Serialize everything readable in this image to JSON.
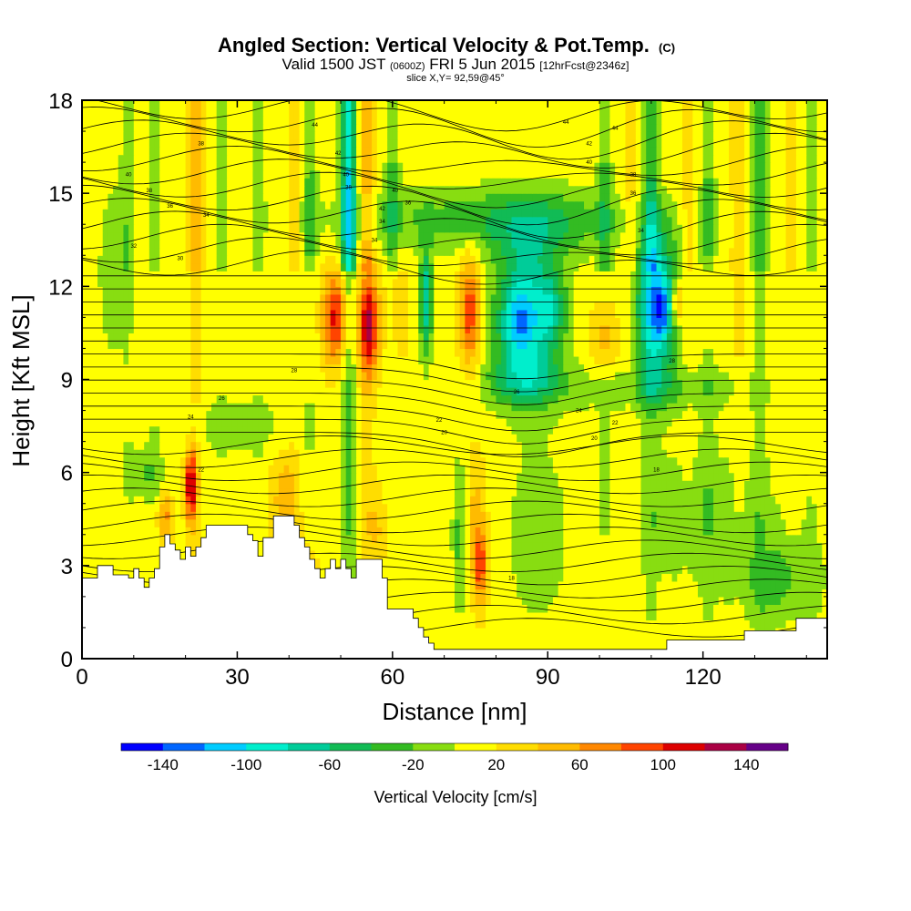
{
  "chart_data": {
    "type": "heatmap",
    "title": "Angled Section: Vertical Velocity & Pot.Temp.",
    "title_unit": "(C)",
    "subtitle_parts": [
      "Valid 1500 JST",
      "(0600Z)",
      "FRI 5 Jun 2015",
      "[12hrFcst@2346z]"
    ],
    "slice_label": "slice X,Y= 92,59@45°",
    "xlabel": "Distance [nm]",
    "ylabel": "Height [Kft MSL]",
    "x_ticks": [
      0,
      30,
      60,
      90,
      120
    ],
    "y_ticks": [
      0,
      3,
      6,
      9,
      12,
      15,
      18
    ],
    "xlim": [
      0,
      144
    ],
    "ylim": [
      0,
      18
    ],
    "colorbar": {
      "label": "Vertical Velocity [cm/s]",
      "tick_values": [
        -140,
        -100,
        -60,
        -20,
        20,
        60,
        100,
        140
      ],
      "tick_labels": [
        "-140",
        "-100",
        "-60",
        "-20",
        "20",
        "60",
        "100",
        "140"
      ],
      "range": [
        -160,
        160
      ],
      "bins": [
        {
          "from": -160,
          "to": -140,
          "color": "#0000ff"
        },
        {
          "from": -140,
          "to": -120,
          "color": "#0066ff"
        },
        {
          "from": -120,
          "to": -100,
          "color": "#00ccff"
        },
        {
          "from": -100,
          "to": -80,
          "color": "#00eecc"
        },
        {
          "from": -80,
          "to": -60,
          "color": "#00cc99"
        },
        {
          "from": -60,
          "to": -40,
          "color": "#11bb55"
        },
        {
          "from": -40,
          "to": -20,
          "color": "#33bb22"
        },
        {
          "from": -20,
          "to": 0,
          "color": "#88dd11"
        },
        {
          "from": 0,
          "to": 20,
          "color": "#ffff00"
        },
        {
          "from": 20,
          "to": 40,
          "color": "#ffdd00"
        },
        {
          "from": 40,
          "to": 60,
          "color": "#ffbb00"
        },
        {
          "from": 60,
          "to": 80,
          "color": "#ff8800"
        },
        {
          "from": 80,
          "to": 100,
          "color": "#ff4400"
        },
        {
          "from": 100,
          "to": 120,
          "color": "#dd0000"
        },
        {
          "from": 120,
          "to": 140,
          "color": "#aa0044"
        },
        {
          "from": 140,
          "to": 160,
          "color": "#660088"
        }
      ]
    },
    "vv_field": {
      "background": 12,
      "features": [
        {
          "x": 86,
          "y": 11.0,
          "sx": 6,
          "sy": 2.3,
          "a": -110
        },
        {
          "x": 84,
          "y": 10.8,
          "sx": 2.5,
          "sy": 1.0,
          "a": -40
        },
        {
          "x": 91,
          "y": 11.3,
          "sx": 2.5,
          "sy": 1.0,
          "a": -40
        },
        {
          "x": 111,
          "y": 11.4,
          "sx": 4,
          "sy": 2.4,
          "a": -120
        },
        {
          "x": 112,
          "y": 11.3,
          "sx": 1.3,
          "sy": 0.8,
          "a": -50
        },
        {
          "x": 66.5,
          "y": 11.5,
          "sx": 1.2,
          "sy": 1.8,
          "a": -90
        },
        {
          "x": 78,
          "y": 14.2,
          "sx": 30,
          "sy": 1.0,
          "a": -40
        },
        {
          "x": 88,
          "y": 13.8,
          "sx": 10,
          "sy": 1.2,
          "a": -30
        },
        {
          "x": 110,
          "y": 8.7,
          "sx": 20,
          "sy": 0.7,
          "a": -30
        },
        {
          "x": 85,
          "y": 9.0,
          "sx": 8,
          "sy": 0.8,
          "a": -40
        },
        {
          "x": 49,
          "y": 11.0,
          "sx": 2.5,
          "sy": 1.5,
          "a": 95
        },
        {
          "x": 55.5,
          "y": 10.7,
          "sx": 2,
          "sy": 1.6,
          "a": 105
        },
        {
          "x": 75,
          "y": 11.2,
          "sx": 2,
          "sy": 1.8,
          "a": 85
        },
        {
          "x": 101,
          "y": 10.3,
          "sx": 2.5,
          "sy": 1.4,
          "a": 45
        },
        {
          "x": 115,
          "y": 11.5,
          "sx": 0.8,
          "sy": 0.7,
          "a": 80
        },
        {
          "x": 61,
          "y": 11.3,
          "sx": 2,
          "sy": 1.8,
          "a": 30
        },
        {
          "x": 21,
          "y": 5.6,
          "sx": 1.1,
          "sy": 1.2,
          "a": 110
        },
        {
          "x": 16,
          "y": 4.6,
          "sx": 1.5,
          "sy": 0.8,
          "a": 55
        },
        {
          "x": 39,
          "y": 5.2,
          "sx": 2.5,
          "sy": 1.5,
          "a": 40
        },
        {
          "x": 77,
          "y": 3.0,
          "sx": 1.4,
          "sy": 1.3,
          "a": 80
        },
        {
          "x": 76,
          "y": 5.0,
          "sx": 2,
          "sy": 1.8,
          "a": 30
        },
        {
          "x": 57,
          "y": 4.2,
          "sx": 2,
          "sy": 1.3,
          "a": 30
        },
        {
          "x": 73,
          "y": 4.0,
          "sx": 1.4,
          "sy": 2.5,
          "a": -40
        },
        {
          "x": 88,
          "y": 4.0,
          "sx": 6,
          "sy": 3,
          "a": -25
        },
        {
          "x": 120,
          "y": 4.5,
          "sx": 15,
          "sy": 2.5,
          "a": -25
        },
        {
          "x": 135,
          "y": 2.5,
          "sx": 8,
          "sy": 1.5,
          "a": -35
        },
        {
          "x": 12,
          "y": 6.0,
          "sx": 4,
          "sy": 0.8,
          "a": -30
        },
        {
          "x": 30,
          "y": 7.5,
          "sx": 10,
          "sy": 0.8,
          "a": -25
        },
        {
          "x": 6,
          "y": 12.5,
          "sx": 3,
          "sy": 3,
          "a": -25
        },
        {
          "x": 42,
          "y": 2.8,
          "sx": 4,
          "sy": 1.5,
          "a": 25
        }
      ],
      "columns": [
        {
          "x": 9,
          "a": -25
        },
        {
          "x": 14,
          "a": -30
        },
        {
          "x": 22,
          "a": 40
        },
        {
          "x": 27,
          "a": -25
        },
        {
          "x": 34,
          "a": -25
        },
        {
          "x": 41,
          "a": 22
        },
        {
          "x": 44,
          "a": -35
        },
        {
          "x": 51.5,
          "a": -110
        },
        {
          "x": 55,
          "a": 45
        },
        {
          "x": 60,
          "a": -35
        },
        {
          "x": 101,
          "a": -35
        },
        {
          "x": 106,
          "a": 25
        },
        {
          "x": 110,
          "a": -50
        },
        {
          "x": 117,
          "a": 22
        },
        {
          "x": 121,
          "a": -35
        },
        {
          "x": 127,
          "a": 30
        },
        {
          "x": 131,
          "a": -45
        },
        {
          "x": 137,
          "a": 25
        },
        {
          "x": 141,
          "a": -25
        }
      ]
    },
    "terrain": {
      "x": [
        0,
        3,
        3,
        6,
        6,
        9,
        9,
        10,
        10,
        11,
        11,
        12,
        12,
        13,
        13,
        14,
        14,
        15,
        15,
        16,
        16,
        17,
        17,
        18,
        18,
        19,
        19,
        20,
        20,
        21,
        21,
        22,
        22,
        23,
        23,
        24,
        24,
        25,
        25,
        32,
        32,
        33,
        33,
        34,
        34,
        35,
        35,
        37,
        37,
        41,
        41,
        42,
        42,
        43,
        43,
        44,
        44,
        45,
        45,
        46,
        46,
        47,
        47,
        48,
        48,
        49,
        49,
        50,
        50,
        51,
        51,
        52,
        52,
        53,
        53,
        58,
        58,
        59,
        59,
        60,
        60,
        64,
        64,
        65,
        65,
        66,
        66,
        67,
        67,
        68,
        68,
        70,
        70,
        113,
        113,
        118,
        118,
        128,
        128,
        138,
        138,
        144
      ],
      "y": [
        2.6,
        2.6,
        3.0,
        3.0,
        2.7,
        2.7,
        2.6,
        2.6,
        2.9,
        2.9,
        2.6,
        2.6,
        2.3,
        2.3,
        2.6,
        2.6,
        2.9,
        2.9,
        3.6,
        3.6,
        4.0,
        4.0,
        3.7,
        3.7,
        3.5,
        3.5,
        3.2,
        3.2,
        3.6,
        3.6,
        3.3,
        3.3,
        3.6,
        3.6,
        3.9,
        3.9,
        4.3,
        4.3,
        4.3,
        4.3,
        4.0,
        4.0,
        3.8,
        3.8,
        3.3,
        3.3,
        3.9,
        3.9,
        4.6,
        4.6,
        4.3,
        4.3,
        3.9,
        3.9,
        3.6,
        3.6,
        3.2,
        3.2,
        2.9,
        2.9,
        2.6,
        2.6,
        2.9,
        2.9,
        3.2,
        3.2,
        2.9,
        2.9,
        3.2,
        3.2,
        2.9,
        2.9,
        2.6,
        2.6,
        3.2,
        3.2,
        2.6,
        2.6,
        1.6,
        1.6,
        1.6,
        1.6,
        1.3,
        1.3,
        1.0,
        1.0,
        0.7,
        0.7,
        0.5,
        0.5,
        0.3,
        0.3,
        0.3,
        0.3,
        0.6,
        0.6,
        0.6,
        0.6,
        0.9,
        0.9,
        1.3,
        1.3
      ]
    },
    "theta_contour_labels": [
      {
        "x": 45,
        "y": 17.2,
        "t": "44"
      },
      {
        "x": 49.5,
        "y": 16.3,
        "t": "42"
      },
      {
        "x": 51,
        "y": 15.6,
        "t": "40"
      },
      {
        "x": 51.5,
        "y": 15.2,
        "t": "38"
      },
      {
        "x": 60.5,
        "y": 15.1,
        "t": "40"
      },
      {
        "x": 63,
        "y": 14.7,
        "t": "36"
      },
      {
        "x": 58,
        "y": 14.5,
        "t": "42"
      },
      {
        "x": 58,
        "y": 14.1,
        "t": "34"
      },
      {
        "x": 56.5,
        "y": 13.5,
        "t": "34"
      },
      {
        "x": 23,
        "y": 16.6,
        "t": "38"
      },
      {
        "x": 9,
        "y": 15.6,
        "t": "40"
      },
      {
        "x": 13,
        "y": 15.1,
        "t": "38"
      },
      {
        "x": 17,
        "y": 14.6,
        "t": "36"
      },
      {
        "x": 24,
        "y": 14.3,
        "t": "34"
      },
      {
        "x": 10,
        "y": 13.3,
        "t": "32"
      },
      {
        "x": 19,
        "y": 12.9,
        "t": "30"
      },
      {
        "x": 93.5,
        "y": 17.3,
        "t": "44"
      },
      {
        "x": 98,
        "y": 16.6,
        "t": "42"
      },
      {
        "x": 98,
        "y": 16.0,
        "t": "40"
      },
      {
        "x": 103,
        "y": 17.1,
        "t": "44"
      },
      {
        "x": 106.5,
        "y": 15.6,
        "t": "38"
      },
      {
        "x": 106.5,
        "y": 15.0,
        "t": "36"
      },
      {
        "x": 108,
        "y": 13.8,
        "t": "34"
      },
      {
        "x": 41,
        "y": 9.3,
        "t": "28"
      },
      {
        "x": 27,
        "y": 8.4,
        "t": "26"
      },
      {
        "x": 21,
        "y": 7.8,
        "t": "24"
      },
      {
        "x": 23,
        "y": 6.1,
        "t": "22"
      },
      {
        "x": 84,
        "y": 8.6,
        "t": "26"
      },
      {
        "x": 69,
        "y": 7.7,
        "t": "22"
      },
      {
        "x": 70,
        "y": 7.3,
        "t": "20"
      },
      {
        "x": 96,
        "y": 8.0,
        "t": "24"
      },
      {
        "x": 103,
        "y": 7.6,
        "t": "22"
      },
      {
        "x": 99,
        "y": 7.1,
        "t": "20"
      },
      {
        "x": 114,
        "y": 9.6,
        "t": "28"
      },
      {
        "x": 111,
        "y": 6.1,
        "t": "18"
      },
      {
        "x": 83,
        "y": 2.6,
        "t": "18"
      }
    ]
  }
}
